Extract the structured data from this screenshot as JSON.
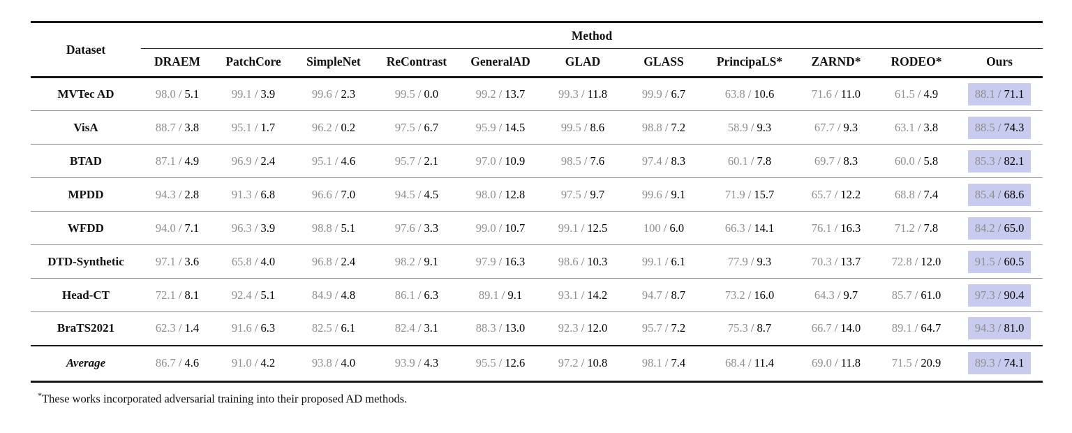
{
  "table": {
    "header": {
      "dataset_label": "Dataset",
      "method_label": "Method",
      "methods": [
        "DRAEM",
        "PatchCore",
        "SimpleNet",
        "ReContrast",
        "GeneralAD",
        "GLAD",
        "GLASS",
        "PrincipaLS*",
        "ZARND*",
        "RODEO*",
        "Ours"
      ]
    },
    "rows": [
      {
        "dataset": "MVTec AD",
        "values": [
          [
            "98.0",
            "5.1"
          ],
          [
            "99.1",
            "3.9"
          ],
          [
            "99.6",
            "2.3"
          ],
          [
            "99.5",
            "0.0"
          ],
          [
            "99.2",
            "13.7"
          ],
          [
            "99.3",
            "11.8"
          ],
          [
            "99.9",
            "6.7"
          ],
          [
            "63.8",
            "10.6"
          ],
          [
            "71.6",
            "11.0"
          ],
          [
            "61.5",
            "4.9"
          ],
          [
            "88.1",
            "71.1"
          ]
        ]
      },
      {
        "dataset": "VisA",
        "values": [
          [
            "88.7",
            "3.8"
          ],
          [
            "95.1",
            "1.7"
          ],
          [
            "96.2",
            "0.2"
          ],
          [
            "97.5",
            "6.7"
          ],
          [
            "95.9",
            "14.5"
          ],
          [
            "99.5",
            "8.6"
          ],
          [
            "98.8",
            "7.2"
          ],
          [
            "58.9",
            "9.3"
          ],
          [
            "67.7",
            "9.3"
          ],
          [
            "63.1",
            "3.8"
          ],
          [
            "88.5",
            "74.3"
          ]
        ]
      },
      {
        "dataset": "BTAD",
        "values": [
          [
            "87.1",
            "4.9"
          ],
          [
            "96.9",
            "2.4"
          ],
          [
            "95.1",
            "4.6"
          ],
          [
            "95.7",
            "2.1"
          ],
          [
            "97.0",
            "10.9"
          ],
          [
            "98.5",
            "7.6"
          ],
          [
            "97.4",
            "8.3"
          ],
          [
            "60.1",
            "7.8"
          ],
          [
            "69.7",
            "8.3"
          ],
          [
            "60.0",
            "5.8"
          ],
          [
            "85.3",
            "82.1"
          ]
        ]
      },
      {
        "dataset": "MPDD",
        "values": [
          [
            "94.3",
            "2.8"
          ],
          [
            "91.3",
            "6.8"
          ],
          [
            "96.6",
            "7.0"
          ],
          [
            "94.5",
            "4.5"
          ],
          [
            "98.0",
            "12.8"
          ],
          [
            "97.5",
            "9.7"
          ],
          [
            "99.6",
            "9.1"
          ],
          [
            "71.9",
            "15.7"
          ],
          [
            "65.7",
            "12.2"
          ],
          [
            "68.8",
            "7.4"
          ],
          [
            "85.4",
            "68.6"
          ]
        ]
      },
      {
        "dataset": "WFDD",
        "values": [
          [
            "94.0",
            "7.1"
          ],
          [
            "96.3",
            "3.9"
          ],
          [
            "98.8",
            "5.1"
          ],
          [
            "97.6",
            "3.3"
          ],
          [
            "99.0",
            "10.7"
          ],
          [
            "99.1",
            "12.5"
          ],
          [
            "100",
            "6.0"
          ],
          [
            "66.3",
            "14.1"
          ],
          [
            "76.1",
            "16.3"
          ],
          [
            "71.2",
            "7.8"
          ],
          [
            "84.2",
            "65.0"
          ]
        ]
      },
      {
        "dataset": "DTD-Synthetic",
        "values": [
          [
            "97.1",
            "3.6"
          ],
          [
            "65.8",
            "4.0"
          ],
          [
            "96.8",
            "2.4"
          ],
          [
            "98.2",
            "9.1"
          ],
          [
            "97.9",
            "16.3"
          ],
          [
            "98.6",
            "10.3"
          ],
          [
            "99.1",
            "6.1"
          ],
          [
            "77.9",
            "9.3"
          ],
          [
            "70.3",
            "13.7"
          ],
          [
            "72.8",
            "12.0"
          ],
          [
            "91.5",
            "60.5"
          ]
        ]
      },
      {
        "dataset": "Head-CT",
        "values": [
          [
            "72.1",
            "8.1"
          ],
          [
            "92.4",
            "5.1"
          ],
          [
            "84.9",
            "4.8"
          ],
          [
            "86.1",
            "6.3"
          ],
          [
            "89.1",
            "9.1"
          ],
          [
            "93.1",
            "14.2"
          ],
          [
            "94.7",
            "8.7"
          ],
          [
            "73.2",
            "16.0"
          ],
          [
            "64.3",
            "9.7"
          ],
          [
            "85.7",
            "61.0"
          ],
          [
            "97.3",
            "90.4"
          ]
        ]
      },
      {
        "dataset": "BraTS2021",
        "values": [
          [
            "62.3",
            "1.4"
          ],
          [
            "91.6",
            "6.3"
          ],
          [
            "82.5",
            "6.1"
          ],
          [
            "82.4",
            "3.1"
          ],
          [
            "88.3",
            "13.0"
          ],
          [
            "92.3",
            "12.0"
          ],
          [
            "95.7",
            "7.2"
          ],
          [
            "75.3",
            "8.7"
          ],
          [
            "66.7",
            "14.0"
          ],
          [
            "89.1",
            "64.7"
          ],
          [
            "94.3",
            "81.0"
          ]
        ]
      }
    ],
    "average": {
      "dataset": "Average",
      "values": [
        [
          "86.7",
          "4.6"
        ],
        [
          "91.0",
          "4.2"
        ],
        [
          "93.8",
          "4.0"
        ],
        [
          "93.9",
          "4.3"
        ],
        [
          "95.5",
          "12.6"
        ],
        [
          "97.2",
          "10.8"
        ],
        [
          "98.1",
          "7.4"
        ],
        [
          "68.4",
          "11.4"
        ],
        [
          "69.0",
          "11.8"
        ],
        [
          "71.5",
          "20.9"
        ],
        [
          "89.3",
          "74.1"
        ]
      ]
    },
    "value_separator": " / ",
    "highlight_color": "#c8caee",
    "footnote_marker": "*",
    "footnote_text": "These works incorporated adversarial training into their proposed AD methods."
  }
}
